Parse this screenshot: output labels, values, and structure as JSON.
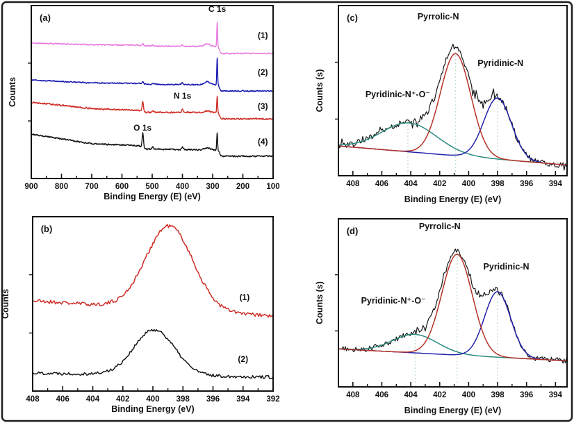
{
  "figure": {
    "background": "#ffffff",
    "outer_border_color": "#1c1c1c",
    "guide_color": "#bcdcc4",
    "colors": {
      "survey_magenta": "#e87ae0",
      "survey_blue": "#1a1ab0",
      "survey_red": "#cf2b24",
      "black": "#161616",
      "fit_red": "#b53227",
      "fit_blue": "#2222aa",
      "fit_teal": "#2a8b7f"
    }
  },
  "chart_data": [
    {
      "id": "a",
      "panel_label": "(a)",
      "type": "line",
      "xlabel": "Binding Energy (E) (eV)",
      "ylabel": "Counts",
      "x_range": [
        900,
        100
      ],
      "x_ticks": [
        900,
        800,
        700,
        600,
        500,
        400,
        300,
        200,
        100
      ],
      "x_minor_step": 50,
      "y_axis": "arbitrary counts, curves offset; 1000 = panel top",
      "annotations": [
        {
          "text": "C 1s",
          "x": 285,
          "y_u": 964,
          "color": "#111111"
        },
        {
          "text": "N 1s",
          "x": 400,
          "y_u": 462,
          "color": "#111111"
        },
        {
          "text": "O 1s",
          "x": 532,
          "y_u": 277,
          "color": "#111111"
        }
      ],
      "guides": [],
      "series": [
        {
          "name": "(1)",
          "color": "#e87ae0",
          "width": 1.4,
          "step": 0.8,
          "seed": 11,
          "noise": 2.5,
          "smooth_noise": true,
          "baseline": [
            [
              900,
              783
            ],
            [
              700,
              774
            ],
            [
              545,
              772
            ],
            [
              520,
              767
            ],
            [
              310,
              763
            ]
          ],
          "tail": 723,
          "drop_center": 277,
          "drop_width": 2,
          "peaks": [
            [
              531,
              10,
              2.2
            ],
            [
              498,
              4,
              2.5
            ],
            [
              400,
              8,
              2.5
            ],
            [
              318,
              16,
              9
            ],
            [
              285,
              141,
              1.3
            ]
          ],
          "label": {
            "text": "(1)",
            "x": 134,
            "y_u": 811,
            "color": "#111111"
          }
        },
        {
          "name": "(2)",
          "color": "#1a1ab0",
          "width": 1.4,
          "step": 0.8,
          "seed": 12,
          "noise": 2.5,
          "smooth_noise": true,
          "baseline": [
            [
              900,
              570
            ],
            [
              700,
              553
            ],
            [
              545,
              550
            ],
            [
              520,
              545
            ],
            [
              310,
              542
            ]
          ],
          "tail": 506,
          "drop_center": 277,
          "drop_width": 2,
          "peaks": [
            [
              531,
              14,
              2.2
            ],
            [
              498,
              5,
              2.5
            ],
            [
              400,
              10,
              2.5
            ],
            [
              318,
              18,
              9
            ],
            [
              285,
              157,
              1.3
            ]
          ],
          "label": {
            "text": "(2)",
            "x": 134,
            "y_u": 598,
            "color": "#111111"
          }
        },
        {
          "name": "(3)",
          "color": "#cf2b24",
          "width": 1.4,
          "step": 0.8,
          "seed": 13,
          "noise": 3,
          "smooth_noise": true,
          "baseline": [
            [
              900,
              442
            ],
            [
              700,
              404
            ],
            [
              545,
              394
            ],
            [
              520,
              383
            ],
            [
              310,
              381
            ]
          ],
          "tail": 345,
          "drop_center": 277,
          "drop_width": 2,
          "peaks": [
            [
              531,
              58,
              2.2
            ],
            [
              498,
              10,
              2.5
            ],
            [
              400,
              18,
              2.5
            ],
            [
              318,
              10,
              9
            ],
            [
              285,
              96,
              1.4
            ]
          ],
          "label": {
            "text": "(3)",
            "x": 134,
            "y_u": 402,
            "color": "#111111"
          }
        },
        {
          "name": "(4)",
          "color": "#161616",
          "width": 1.4,
          "step": 0.8,
          "seed": 14,
          "noise": 3,
          "smooth_noise": true,
          "baseline": [
            [
              900,
              257
            ],
            [
              700,
              201
            ],
            [
              545,
              190
            ],
            [
              520,
              171
            ],
            [
              310,
              165
            ]
          ],
          "tail": 129,
          "drop_center": 277,
          "drop_width": 2,
          "peaks": [
            [
              531,
              86,
              2.2
            ],
            [
              498,
              14,
              2.5
            ],
            [
              400,
              14,
              2.5
            ],
            [
              318,
              12,
              9
            ],
            [
              285,
              104,
              1.4
            ]
          ],
          "label": {
            "text": "(4)",
            "x": 134,
            "y_u": 197,
            "color": "#111111"
          }
        }
      ]
    },
    {
      "id": "b",
      "panel_label": "(b)",
      "type": "line",
      "xlabel": "Binding Energy (eV)",
      "ylabel": "Counts",
      "x_range": [
        408,
        392
      ],
      "x_ticks": [
        408,
        406,
        404,
        402,
        400,
        398,
        396,
        394,
        392
      ],
      "x_minor_step": 1,
      "annotations": [],
      "guides": [],
      "series": [
        {
          "name": "(1)",
          "color": "#cf2b24",
          "width": 1.5,
          "step": 0.08,
          "seed": 21,
          "noise": 11,
          "baseline": [
            [
              408,
              518
            ],
            [
              392,
              430
            ]
          ],
          "peaks": [
            [
              398.9,
              480,
              1.55
            ]
          ],
          "label": {
            "text": "(1)",
            "x": 393.9,
            "y_u": 522,
            "color": "#111111"
          }
        },
        {
          "name": "(2)",
          "color": "#161616",
          "width": 1.5,
          "step": 0.08,
          "seed": 22,
          "noise": 9,
          "baseline": [
            [
              408,
              104
            ],
            [
              392,
              80
            ]
          ],
          "peaks": [
            [
              399.9,
              260,
              1.35
            ]
          ],
          "label": {
            "text": "(2)",
            "x": 394.0,
            "y_u": 167,
            "color": "#111111"
          }
        }
      ]
    },
    {
      "id": "c",
      "panel_label": "(c)",
      "type": "line",
      "xlabel": "Binding Energy (E) (eV)",
      "ylabel": "Counts (s)",
      "x_range": [
        409,
        393.2
      ],
      "x_ticks": [
        408,
        406,
        404,
        402,
        400,
        398,
        396,
        394
      ],
      "x_minor_step": 1,
      "annotations": [
        {
          "text": "Pyrrolic-N",
          "x": 402.1,
          "y_u": 918,
          "color": "#cc2020"
        },
        {
          "text": "Pyridinic-N",
          "x": 397.8,
          "y_u": 645,
          "color": "#2020b8"
        },
        {
          "text": "Pyridinic-N⁺-O⁻",
          "x": 404.9,
          "y_u": 461,
          "color": "#2a8b7f"
        }
      ],
      "guides": [
        {
          "x": 404.2,
          "top_u": 320
        },
        {
          "x": 400.9,
          "top_u": 730
        },
        {
          "x": 398.0,
          "top_u": 470
        }
      ],
      "series": [
        {
          "name": "experimental",
          "color": "#161616",
          "width": 1.2,
          "step": 0.08,
          "seed": 31,
          "noise": 19,
          "spikes": true,
          "baseline": [
            [
              409,
              175
            ],
            [
              393.2,
              63
            ]
          ],
          "peaks": [
            [
              400.9,
              600,
              1.05
            ],
            [
              398.0,
              360,
              0.95
            ],
            [
              404.1,
              170,
              1.9
            ]
          ]
        },
        {
          "name": "Pyridinic-N⁺-O⁻ component",
          "color": "#2a8b7f",
          "width": 1.5,
          "step": 0.12,
          "seed": 32,
          "noise": 0,
          "baseline": [
            [
              409,
              175
            ],
            [
              393.2,
              63
            ]
          ],
          "peaks": [
            [
              404.1,
              170,
              1.9
            ]
          ]
        },
        {
          "name": "Pyridinic-N component",
          "color": "#2222aa",
          "width": 1.5,
          "step": 0.12,
          "seed": 33,
          "noise": 0,
          "baseline": [
            [
              409,
              175
            ],
            [
              393.2,
              63
            ]
          ],
          "peaks": [
            [
              398.0,
              360,
              0.95
            ]
          ]
        },
        {
          "name": "Pyrrolic-N component",
          "color": "#b53227",
          "width": 1.5,
          "step": 0.12,
          "seed": 34,
          "noise": 0,
          "baseline": [
            [
              409,
              175
            ],
            [
              393.2,
              63
            ]
          ],
          "peaks": [
            [
              400.9,
              600,
              1.05
            ]
          ]
        }
      ]
    },
    {
      "id": "d",
      "panel_label": "(d)",
      "type": "line",
      "xlabel": "Binding Energy (E) (eV)",
      "ylabel": "Counts (s)",
      "x_range": [
        409,
        393.2
      ],
      "x_ticks": [
        408,
        406,
        404,
        402,
        400,
        398,
        396,
        394
      ],
      "x_minor_step": 1,
      "annotations": [
        {
          "text": "Pyrrolic-N",
          "x": 402.0,
          "y_u": 938,
          "color": "#cc2020"
        },
        {
          "text": "Pyridinic-N",
          "x": 397.4,
          "y_u": 698,
          "color": "#2020b8"
        },
        {
          "text": "Pyridinic-N⁺-O⁻",
          "x": 405.2,
          "y_u": 496,
          "color": "#2a8b7f"
        }
      ],
      "guides": [
        {
          "x": 403.7,
          "top_u": 320
        },
        {
          "x": 400.8,
          "top_u": 800
        },
        {
          "x": 398.0,
          "top_u": 580
        }
      ],
      "series": [
        {
          "name": "experimental",
          "color": "#161616",
          "width": 1.2,
          "step": 0.08,
          "seed": 41,
          "noise": 16,
          "spikes": true,
          "baseline": [
            [
              409,
              226
            ],
            [
              393.2,
              155
            ]
          ],
          "peaks": [
            [
              400.8,
              600,
              1.05
            ],
            [
              398.0,
              390,
              0.9
            ],
            [
              403.7,
              110,
              1.55
            ]
          ]
        },
        {
          "name": "Pyridinic-N⁺-O⁻ component",
          "color": "#2a8b7f",
          "width": 1.5,
          "step": 0.12,
          "seed": 42,
          "noise": 0,
          "baseline": [
            [
              409,
              226
            ],
            [
              393.2,
              155
            ]
          ],
          "peaks": [
            [
              403.7,
              110,
              1.55
            ]
          ]
        },
        {
          "name": "Pyridinic-N component",
          "color": "#2222aa",
          "width": 1.5,
          "step": 0.12,
          "seed": 43,
          "noise": 0,
          "baseline": [
            [
              409,
              226
            ],
            [
              393.2,
              155
            ]
          ],
          "peaks": [
            [
              398.0,
              390,
              0.9
            ]
          ]
        },
        {
          "name": "Pyrrolic-N component",
          "color": "#b53227",
          "width": 1.5,
          "step": 0.12,
          "seed": 44,
          "noise": 0,
          "baseline": [
            [
              409,
              226
            ],
            [
              393.2,
              155
            ]
          ],
          "peaks": [
            [
              400.8,
              600,
              1.05
            ]
          ]
        }
      ]
    }
  ]
}
